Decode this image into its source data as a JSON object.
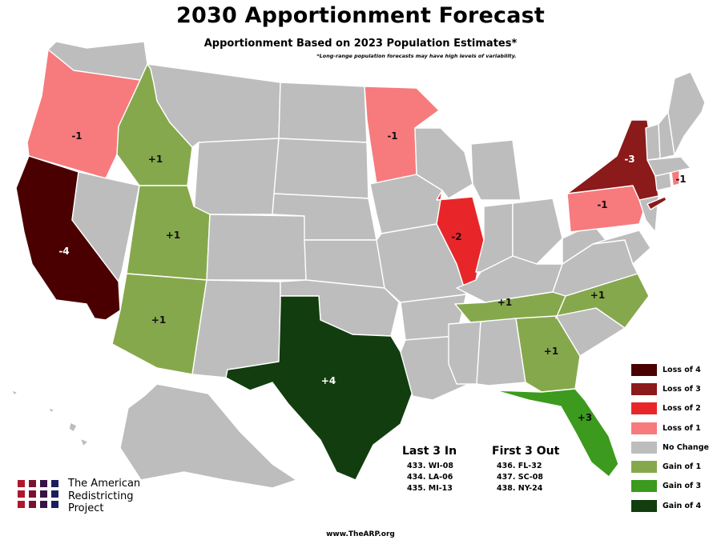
{
  "title": "2030 Apportionment Forecast",
  "subtitle": "Apportionment Based on 2023 Population Estimates*",
  "footnote": "*Long-range population forecasts may have high levels of variability.",
  "colors": {
    "loss4": "#4a0000",
    "loss3": "#8b1a1a",
    "loss2": "#e8262a",
    "loss1": "#f77a7d",
    "nochange": "#bdbdbd",
    "gain1": "#86a84c",
    "gain3": "#3c9a1e",
    "gain4": "#123d0f",
    "border": "#ffffff"
  },
  "states": [
    {
      "name": "California",
      "change": "-4",
      "color": "loss4"
    },
    {
      "name": "New York",
      "change": "-3",
      "color": "loss3"
    },
    {
      "name": "Illinois",
      "change": "-2",
      "color": "loss2"
    },
    {
      "name": "Oregon",
      "change": "-1",
      "color": "loss1"
    },
    {
      "name": "Minnesota",
      "change": "-1",
      "color": "loss1"
    },
    {
      "name": "Pennsylvania",
      "change": "-1",
      "color": "loss1"
    },
    {
      "name": "Rhode Island",
      "change": "-1",
      "color": "loss1"
    },
    {
      "name": "Idaho",
      "change": "+1",
      "color": "gain1"
    },
    {
      "name": "Utah",
      "change": "+1",
      "color": "gain1"
    },
    {
      "name": "Arizona",
      "change": "+1",
      "color": "gain1"
    },
    {
      "name": "Tennessee",
      "change": "+1",
      "color": "gain1"
    },
    {
      "name": "North Carolina",
      "change": "+1",
      "color": "gain1"
    },
    {
      "name": "Georgia",
      "change": "+1",
      "color": "gain1"
    },
    {
      "name": "Florida",
      "change": "+3",
      "color": "gain3"
    },
    {
      "name": "Texas",
      "change": "+4",
      "color": "gain4"
    }
  ],
  "legend": [
    {
      "label": "Loss of 4",
      "color": "loss4"
    },
    {
      "label": "Loss of 3",
      "color": "loss3"
    },
    {
      "label": "Loss of 2",
      "color": "loss2"
    },
    {
      "label": "Loss of 1",
      "color": "loss1"
    },
    {
      "label": "No Change",
      "color": "nochange"
    },
    {
      "label": "Gain of 1",
      "color": "gain1"
    },
    {
      "label": "Gain of 3",
      "color": "gain3"
    },
    {
      "label": "Gain of 4",
      "color": "gain4"
    }
  ],
  "last_in": {
    "heading": "Last 3 In",
    "items": [
      "433. WI-08",
      "434. LA-06",
      "435. MI-13"
    ]
  },
  "first_out": {
    "heading": "First 3 Out",
    "items": [
      "436. FL-32",
      "437. SC-08",
      "438. NY-24"
    ]
  },
  "logo": {
    "lines": [
      "The American",
      "Redistricting",
      "Project"
    ],
    "grid_colors": [
      "#b0162c",
      "#7a1230",
      "#3a1346",
      "#1a1f5c"
    ]
  },
  "url": "www.TheARP.org"
}
